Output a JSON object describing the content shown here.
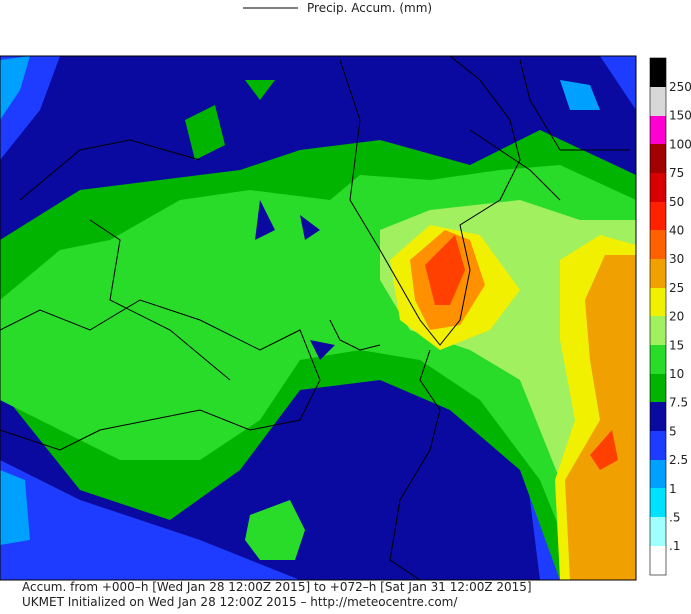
{
  "legend": {
    "title": "Precip. Accum. (mm)"
  },
  "colorbar": {
    "labels": [
      "250",
      "150",
      "100",
      "75",
      "50",
      "40",
      "30",
      "25",
      "20",
      "15",
      "10",
      "7.5",
      "5",
      "2.5",
      "1",
      ".5",
      ".1"
    ]
  },
  "footer": {
    "lines": [
      "Accum. from +000–h [Wed Jan 28 12:00Z 2015] to +072–h [Sat Jan 31 12:00Z 2015]",
      "UKMET Initialized on Wed Jan 28 12:00Z 2015 – http://meteocentre.com/"
    ]
  }
}
